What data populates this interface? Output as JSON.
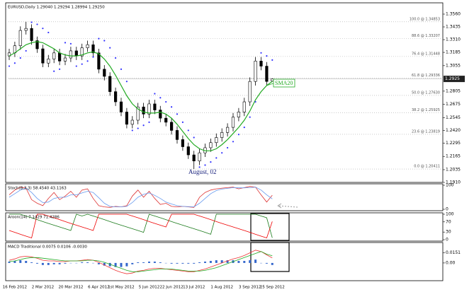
{
  "chart_data": [
    {
      "type": "candlestick",
      "title": "EURUSD,Daily 1.29040 1.29294 1.28994 1.29250",
      "categories": [
        null,
        "16 Feb 2012",
        null,
        null,
        null,
        null,
        "2 Mar 2012",
        null,
        null,
        null,
        null,
        "20 Mar 2012",
        null,
        null,
        null,
        null,
        "6 Apr 2012",
        null,
        null,
        null,
        "1st May 2012",
        null,
        null,
        null,
        null,
        "5 Jun 2012",
        null,
        null,
        null,
        "22 Jun 2012",
        null,
        null,
        null,
        "13 Jul 2012",
        null,
        null,
        null,
        null,
        "1 Aug 2012",
        null,
        null,
        null,
        null,
        "3 Sep 2012",
        null,
        null,
        null,
        "25 Sep 2012"
      ],
      "open": [
        1.315,
        1.318,
        1.325,
        1.34,
        1.342,
        1.33,
        1.322,
        1.308,
        1.312,
        1.318,
        1.31,
        1.313,
        1.32,
        1.315,
        1.323,
        1.326,
        1.318,
        1.302,
        1.295,
        1.28,
        1.27,
        1.26,
        1.248,
        1.252,
        1.265,
        1.258,
        1.268,
        1.262,
        1.254,
        1.25,
        1.242,
        1.233,
        1.226,
        1.218,
        1.212,
        1.22,
        1.225,
        1.23,
        1.235,
        1.24,
        1.245,
        1.255,
        1.26,
        1.27,
        1.29,
        1.31,
        1.305,
        1.2904
      ],
      "high": [
        1.322,
        1.329,
        1.344,
        1.3485,
        1.346,
        1.334,
        1.326,
        1.316,
        1.322,
        1.322,
        1.317,
        1.324,
        1.324,
        1.327,
        1.33,
        1.33,
        1.322,
        1.306,
        1.299,
        1.284,
        1.274,
        1.264,
        1.256,
        1.269,
        1.269,
        1.272,
        1.272,
        1.266,
        1.258,
        1.254,
        1.246,
        1.237,
        1.23,
        1.222,
        1.224,
        1.229,
        1.234,
        1.239,
        1.244,
        1.249,
        1.259,
        1.264,
        1.274,
        1.294,
        1.314,
        1.314,
        1.309,
        1.29294
      ],
      "low": [
        1.311,
        1.314,
        1.321,
        1.336,
        1.326,
        1.318,
        1.304,
        1.304,
        1.308,
        1.306,
        1.306,
        1.309,
        1.311,
        1.311,
        1.319,
        1.314,
        1.298,
        1.291,
        1.276,
        1.266,
        1.256,
        1.244,
        1.244,
        1.248,
        1.254,
        1.254,
        1.258,
        1.25,
        1.246,
        1.238,
        1.229,
        1.222,
        1.214,
        1.2041,
        1.208,
        1.216,
        1.221,
        1.226,
        1.231,
        1.236,
        1.241,
        1.251,
        1.256,
        1.266,
        1.286,
        1.301,
        1.286,
        1.28994
      ],
      "close": [
        1.318,
        1.325,
        1.34,
        1.342,
        1.33,
        1.322,
        1.308,
        1.312,
        1.318,
        1.31,
        1.313,
        1.32,
        1.315,
        1.323,
        1.326,
        1.318,
        1.302,
        1.295,
        1.28,
        1.27,
        1.26,
        1.248,
        1.252,
        1.265,
        1.258,
        1.268,
        1.262,
        1.254,
        1.25,
        1.242,
        1.233,
        1.226,
        1.218,
        1.212,
        1.22,
        1.225,
        1.23,
        1.235,
        1.24,
        1.245,
        1.255,
        1.26,
        1.27,
        1.29,
        1.31,
        1.305,
        1.29,
        1.2925
      ],
      "color": "#000000",
      "sma": {
        "color": "#22aa22",
        "values": [
          1.315,
          1.318,
          1.322,
          1.326,
          1.328,
          1.329,
          1.328,
          1.325,
          1.322,
          1.318,
          1.316,
          1.315,
          1.315,
          1.316,
          1.318,
          1.319,
          1.317,
          1.312,
          1.305,
          1.296,
          1.286,
          1.276,
          1.268,
          1.263,
          1.26,
          1.259,
          1.259,
          1.26,
          1.258,
          1.254,
          1.248,
          1.241,
          1.234,
          1.228,
          1.224,
          1.222,
          1.222,
          1.224,
          1.228,
          1.233,
          1.239,
          1.245,
          1.252,
          1.261,
          1.272,
          1.28,
          1.286,
          1.29
        ]
      },
      "sar": {
        "color": "#3333ff",
        "values": [
          1.305,
          1.308,
          1.313,
          1.32,
          1.348,
          1.346,
          1.342,
          1.338,
          1.3,
          1.302,
          1.328,
          1.327,
          1.305,
          1.307,
          1.31,
          1.314,
          1.332,
          1.33,
          1.323,
          1.313,
          1.302,
          1.29,
          1.242,
          1.244,
          1.247,
          1.25,
          1.278,
          1.274,
          1.27,
          1.265,
          1.258,
          1.25,
          1.242,
          1.235,
          1.206,
          1.208,
          1.211,
          1.215,
          1.22,
          1.225,
          1.231,
          1.238,
          1.245,
          1.255,
          1.27,
          1.318,
          1.315,
          1.311
        ]
      },
      "fib_levels": [
        {
          "value": 1.34853,
          "label": "100.0 @ 1.34853"
        },
        {
          "value": 1.33207,
          "label": "88.6 @ 1.33207"
        },
        {
          "value": 1.31448,
          "label": "76.4 @ 1.31448"
        },
        {
          "value": 1.29336,
          "label": "61.8 @ 1.29336"
        },
        {
          "value": 1.2763,
          "label": "50.0 @ 1.27630"
        },
        {
          "value": 1.25925,
          "label": "38.2 @ 1.25925"
        },
        {
          "value": 1.23819,
          "label": "23.6 @ 1.23819"
        },
        {
          "value": 1.20411,
          "label": "0.0 @ 1.20411"
        }
      ],
      "current_price": 1.2925,
      "annotations": [
        "August, 02",
        "SMA20"
      ],
      "ylim": [
        1.191,
        1.3657
      ],
      "yticks": [
        {
          "value": 1.356,
          "label": "1.3560"
        },
        {
          "value": 1.3435,
          "label": "1.3435"
        },
        {
          "value": 1.331,
          "label": "1.3310"
        },
        {
          "value": 1.3185,
          "label": "1.3185"
        },
        {
          "value": 1.3055,
          "label": "1.3055"
        },
        {
          "value": 1.2805,
          "label": "1.2805"
        },
        {
          "value": 1.2675,
          "label": "1.2675"
        },
        {
          "value": 1.2545,
          "label": "1.2545"
        },
        {
          "value": 1.242,
          "label": "1.2420"
        },
        {
          "value": 1.2295,
          "label": "1.2295"
        },
        {
          "value": 1.2165,
          "label": "1.2165"
        },
        {
          "value": 1.2035,
          "label": "1.2035"
        },
        {
          "value": 1.191,
          "label": "1.1910"
        }
      ]
    },
    {
      "type": "line",
      "title": "Stoch(8,3,3) 58.4540 43.1163",
      "ylim": [
        0,
        100
      ],
      "yticks": [
        100,
        0
      ],
      "lines": [
        {
          "color": "#dd3333",
          "values": [
            60,
            80,
            92,
            88,
            40,
            25,
            15,
            45,
            70,
            40,
            55,
            75,
            50,
            80,
            85,
            45,
            15,
            10,
            8,
            12,
            10,
            15,
            55,
            80,
            50,
            75,
            45,
            20,
            25,
            12,
            10,
            12,
            10,
            8,
            50,
            70,
            80,
            85,
            88,
            90,
            92,
            85,
            90,
            95,
            92,
            60,
            30,
            58.454
          ]
        },
        {
          "color": "#6699ee",
          "values": [
            50,
            65,
            80,
            88,
            70,
            45,
            28,
            30,
            45,
            50,
            50,
            60,
            60,
            68,
            75,
            70,
            48,
            25,
            12,
            10,
            10,
            12,
            28,
            50,
            62,
            68,
            58,
            45,
            30,
            22,
            15,
            12,
            11,
            10,
            25,
            45,
            65,
            78,
            84,
            87,
            90,
            89,
            89,
            90,
            92,
            80,
            60,
            43.1163
          ]
        }
      ]
    },
    {
      "type": "line",
      "title": "Aroon(14) 7.1429 71.4286",
      "ylim": [
        0,
        100
      ],
      "yticks": [
        100,
        70,
        30,
        0
      ],
      "lines": [
        {
          "color": "#1a7a1a",
          "values": [
            100,
            100,
            100,
            93,
            86,
            79,
            71,
            64,
            57,
            50,
            43,
            36,
            100,
            93,
            100,
            93,
            86,
            79,
            71,
            64,
            57,
            50,
            43,
            36,
            29,
            100,
            93,
            86,
            79,
            71,
            64,
            57,
            50,
            43,
            36,
            29,
            21,
            100,
            100,
            100,
            100,
            100,
            100,
            100,
            100,
            93,
            86,
            7.1429
          ]
        },
        {
          "color": "#ee0000",
          "values": [
            36,
            29,
            21,
            14,
            7,
            100,
            100,
            93,
            86,
            79,
            71,
            64,
            57,
            50,
            43,
            36,
            100,
            100,
            100,
            100,
            100,
            100,
            93,
            86,
            79,
            71,
            64,
            57,
            50,
            100,
            100,
            100,
            100,
            100,
            93,
            86,
            79,
            71,
            64,
            57,
            50,
            43,
            36,
            29,
            21,
            14,
            7,
            71.4286
          ]
        }
      ]
    },
    {
      "type": "bar",
      "title": "MACD Traditional 0.0075 0.0106 -0.0030",
      "ylim": [
        -0.0242,
        0.0282
      ],
      "yticks": [
        0.0151,
        {
          "value": 0,
          "label": "0.00"
        }
      ],
      "color": "#3366cc",
      "values": [
        0.002,
        0.003,
        0.004,
        0.003,
        0.001,
        -0.001,
        -0.003,
        -0.003,
        -0.002,
        -0.002,
        -0.001,
        0,
        0,
        0.001,
        0.001,
        0,
        -0.002,
        -0.004,
        -0.005,
        -0.006,
        -0.006,
        -0.005,
        -0.002,
        0.001,
        0.001,
        0.002,
        0.002,
        0.001,
        0,
        -0.001,
        -0.001,
        -0.001,
        -0.001,
        -0.001,
        0.001,
        0.002,
        0.003,
        0.004,
        0.004,
        0.004,
        0.004,
        0.003,
        0.003,
        0.004,
        0.005,
        0,
        -0.001,
        -0.003
      ],
      "lines": [
        {
          "color": "#ee3333",
          "values": [
            0.004,
            0.006,
            0.009,
            0.01,
            0.009,
            0.007,
            0.004,
            0.003,
            0.003,
            0.002,
            0.002,
            0.003,
            0.003,
            0.004,
            0.005,
            0.004,
            0.001,
            -0.003,
            -0.007,
            -0.011,
            -0.014,
            -0.016,
            -0.015,
            -0.012,
            -0.011,
            -0.009,
            -0.008,
            -0.008,
            -0.009,
            -0.01,
            -0.011,
            -0.012,
            -0.013,
            -0.013,
            -0.011,
            -0.009,
            -0.006,
            -0.003,
            0.0,
            0.003,
            0.006,
            0.008,
            0.011,
            0.015,
            0.019,
            0.017,
            0.012,
            0.0075
          ]
        },
        {
          "color": "#22aa22",
          "values": [
            0.002,
            0.003,
            0.005,
            0.007,
            0.008,
            0.008,
            0.007,
            0.006,
            0.005,
            0.004,
            0.003,
            0.003,
            0.003,
            0.003,
            0.004,
            0.004,
            0.003,
            0.001,
            -0.002,
            -0.005,
            -0.008,
            -0.011,
            -0.013,
            -0.013,
            -0.012,
            -0.011,
            -0.01,
            -0.009,
            -0.009,
            -0.009,
            -0.01,
            -0.011,
            -0.012,
            -0.012,
            -0.012,
            -0.011,
            -0.009,
            -0.007,
            -0.004,
            -0.001,
            0.002,
            0.005,
            0.008,
            0.011,
            0.014,
            0.017,
            0.013,
            0.0106
          ]
        }
      ]
    }
  ]
}
